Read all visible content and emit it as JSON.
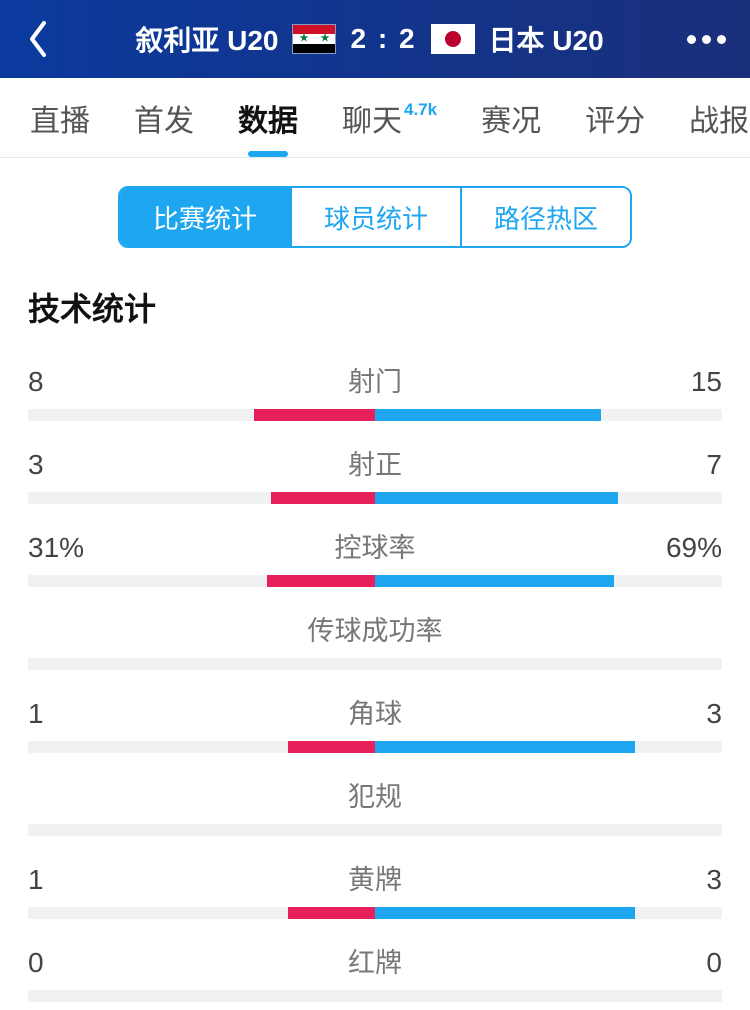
{
  "colors": {
    "header_gradient_from": "#0a3a9e",
    "header_gradient_to": "#1a2f7a",
    "accent": "#1ea6f0",
    "left_bar": "#e6215a",
    "right_bar": "#1ea6f0",
    "track": "#f0f1f3",
    "seg_border": "#1ea6f0",
    "badge": "#1ea6f0",
    "tab_underline": "#1ea6f0"
  },
  "header": {
    "team_left": "叙利亚 U20",
    "team_right": "日本 U20",
    "score": "2 : 2"
  },
  "tabs": {
    "items": [
      {
        "label": "直播",
        "active": false
      },
      {
        "label": "首发",
        "active": false
      },
      {
        "label": "数据",
        "active": true
      },
      {
        "label": "聊天",
        "active": false,
        "badge": "4.7k"
      },
      {
        "label": "赛况",
        "active": false
      },
      {
        "label": "评分",
        "active": false
      },
      {
        "label": "战报",
        "active": false
      }
    ]
  },
  "segments": {
    "items": [
      {
        "label": "比赛统计",
        "active": true
      },
      {
        "label": "球员统计",
        "active": false
      },
      {
        "label": "路径热区",
        "active": false
      }
    ]
  },
  "section_title": "技术统计",
  "stats": [
    {
      "label": "射门",
      "left_display": "8",
      "right_display": "15",
      "left_pct": 35,
      "right_pct": 65
    },
    {
      "label": "射正",
      "left_display": "3",
      "right_display": "7",
      "left_pct": 30,
      "right_pct": 70
    },
    {
      "label": "控球率",
      "left_display": "31%",
      "right_display": "69%",
      "left_pct": 31,
      "right_pct": 69
    },
    {
      "label": "传球成功率",
      "left_display": "",
      "right_display": "",
      "left_pct": 0,
      "right_pct": 0
    },
    {
      "label": "角球",
      "left_display": "1",
      "right_display": "3",
      "left_pct": 25,
      "right_pct": 75
    },
    {
      "label": "犯规",
      "left_display": "",
      "right_display": "",
      "left_pct": 0,
      "right_pct": 0
    },
    {
      "label": "黄牌",
      "left_display": "1",
      "right_display": "3",
      "left_pct": 25,
      "right_pct": 75
    },
    {
      "label": "红牌",
      "left_display": "0",
      "right_display": "0",
      "left_pct": 0,
      "right_pct": 0
    }
  ]
}
